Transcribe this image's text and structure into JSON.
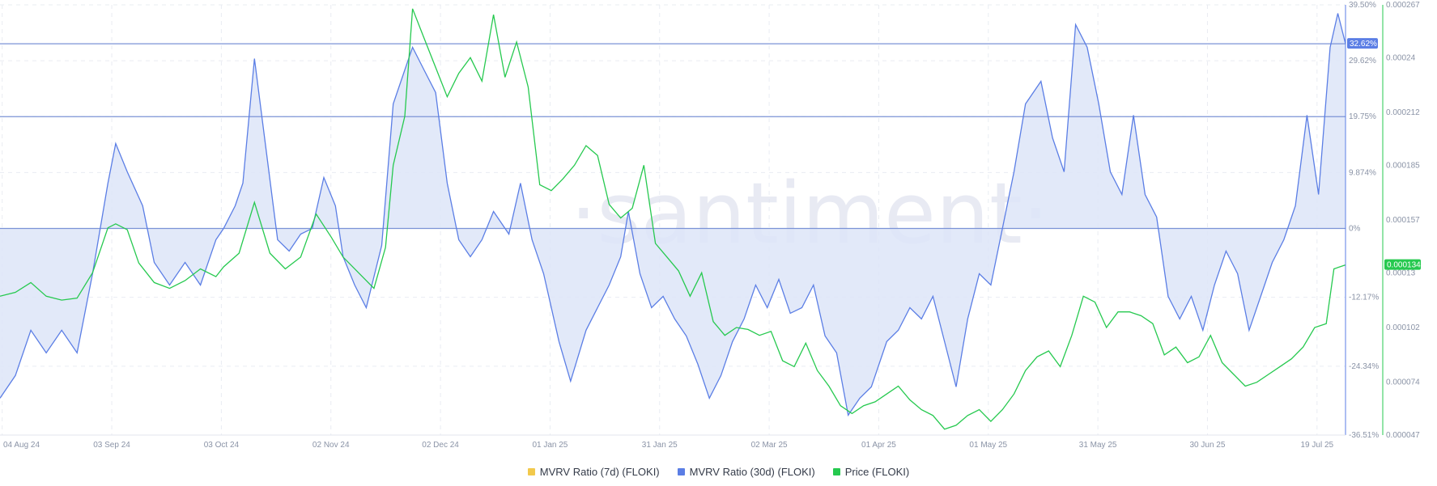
{
  "watermark": "·santiment·",
  "legend": [
    {
      "label": "MVRV Ratio (7d) (FLOKI)",
      "color": "#f2c94c"
    },
    {
      "label": "MVRV Ratio (30d) (FLOKI)",
      "color": "#5b7ee5"
    },
    {
      "label": "Price (FLOKI)",
      "color": "#26c94f"
    }
  ],
  "chart_data": {
    "type": "line",
    "x_ticks": [
      "04 Aug 24",
      "03 Sep 24",
      "03 Oct 24",
      "02 Nov 24",
      "02 Dec 24",
      "01 Jan 25",
      "31 Jan 25",
      "02 Mar 25",
      "01 Apr 25",
      "01 May 25",
      "31 May 25",
      "30 Jun 25",
      "19 Jul 25"
    ],
    "x_range": [
      "2024-08-04",
      "2025-07-19"
    ],
    "mvrv_axis": {
      "ticks": [
        "39.50%",
        "29.62%",
        "19.75%",
        "9.874%",
        "0%",
        "-12.17%",
        "-24.34%",
        "-36.51%"
      ],
      "range": [
        -36.51,
        39.5
      ],
      "unit": "%"
    },
    "price_axis": {
      "ticks": [
        "0.000267",
        "0.00024",
        "0.000212",
        "0.000185",
        "0.000157",
        "0.00013",
        "0.000102",
        "0.000074",
        "0.000047"
      ],
      "range": [
        4.7e-05,
        0.000267
      ]
    },
    "reference_lines": [
      32.62,
      19.75,
      0
    ],
    "current_labels": {
      "mvrv": "32.62%",
      "price": "0.000134"
    },
    "series": [
      {
        "name": "MVRV Ratio (30d) (FLOKI)",
        "color": "#5b7ee5",
        "axis": "mvrv",
        "fill": "#dde5f8",
        "points": [
          [
            "2024-08-04",
            -30
          ],
          [
            "2024-08-08",
            -26
          ],
          [
            "2024-08-12",
            -18
          ],
          [
            "2024-08-16",
            -22
          ],
          [
            "2024-08-20",
            -18
          ],
          [
            "2024-08-24",
            -22
          ],
          [
            "2024-08-28",
            -8
          ],
          [
            "2024-09-01",
            8
          ],
          [
            "2024-09-03",
            15
          ],
          [
            "2024-09-06",
            10
          ],
          [
            "2024-09-10",
            4
          ],
          [
            "2024-09-13",
            -6
          ],
          [
            "2024-09-17",
            -10
          ],
          [
            "2024-09-21",
            -6
          ],
          [
            "2024-09-25",
            -10
          ],
          [
            "2024-09-29",
            -2
          ],
          [
            "2024-10-01",
            0
          ],
          [
            "2024-10-04",
            4
          ],
          [
            "2024-10-06",
            8
          ],
          [
            "2024-10-09",
            30
          ],
          [
            "2024-10-12",
            14
          ],
          [
            "2024-10-15",
            -2
          ],
          [
            "2024-10-18",
            -4
          ],
          [
            "2024-10-21",
            -1
          ],
          [
            "2024-10-24",
            0
          ],
          [
            "2024-10-27",
            9
          ],
          [
            "2024-10-30",
            4
          ],
          [
            "2024-11-01",
            -5
          ],
          [
            "2024-11-04",
            -10
          ],
          [
            "2024-11-07",
            -14
          ],
          [
            "2024-11-11",
            -3
          ],
          [
            "2024-11-14",
            22
          ],
          [
            "2024-11-17",
            28
          ],
          [
            "2024-11-19",
            32
          ],
          [
            "2024-11-22",
            28
          ],
          [
            "2024-11-25",
            24
          ],
          [
            "2024-11-28",
            8
          ],
          [
            "2024-12-01",
            -2
          ],
          [
            "2024-12-04",
            -5
          ],
          [
            "2024-12-07",
            -2
          ],
          [
            "2024-12-10",
            3
          ],
          [
            "2024-12-14",
            -1
          ],
          [
            "2024-12-17",
            8
          ],
          [
            "2024-12-20",
            -2
          ],
          [
            "2024-12-23",
            -8
          ],
          [
            "2024-12-27",
            -20
          ],
          [
            "2024-12-30",
            -27
          ],
          [
            "2025-01-03",
            -18
          ],
          [
            "2025-01-06",
            -14
          ],
          [
            "2025-01-09",
            -10
          ],
          [
            "2025-01-12",
            -5
          ],
          [
            "2025-01-14",
            3
          ],
          [
            "2025-01-17",
            -8
          ],
          [
            "2025-01-20",
            -14
          ],
          [
            "2025-01-23",
            -12
          ],
          [
            "2025-01-26",
            -16
          ],
          [
            "2025-01-29",
            -19
          ],
          [
            "2025-02-01",
            -24
          ],
          [
            "2025-02-04",
            -30
          ],
          [
            "2025-02-07",
            -26
          ],
          [
            "2025-02-10",
            -20
          ],
          [
            "2025-02-13",
            -16
          ],
          [
            "2025-02-16",
            -10
          ],
          [
            "2025-02-19",
            -14
          ],
          [
            "2025-02-22",
            -9
          ],
          [
            "2025-02-25",
            -15
          ],
          [
            "2025-02-28",
            -14
          ],
          [
            "2025-03-03",
            -10
          ],
          [
            "2025-03-06",
            -19
          ],
          [
            "2025-03-09",
            -22
          ],
          [
            "2025-03-12",
            -33
          ],
          [
            "2025-03-15",
            -30
          ],
          [
            "2025-03-18",
            -28
          ],
          [
            "2025-03-22",
            -20
          ],
          [
            "2025-03-25",
            -18
          ],
          [
            "2025-03-28",
            -14
          ],
          [
            "2025-03-31",
            -16
          ],
          [
            "2025-04-03",
            -12
          ],
          [
            "2025-04-06",
            -20
          ],
          [
            "2025-04-09",
            -28
          ],
          [
            "2025-04-12",
            -16
          ],
          [
            "2025-04-15",
            -8
          ],
          [
            "2025-04-18",
            -10
          ],
          [
            "2025-04-21",
            0
          ],
          [
            "2025-04-24",
            10
          ],
          [
            "2025-04-27",
            22
          ],
          [
            "2025-05-01",
            26
          ],
          [
            "2025-05-04",
            16
          ],
          [
            "2025-05-07",
            10
          ],
          [
            "2025-05-10",
            36
          ],
          [
            "2025-05-13",
            32
          ],
          [
            "2025-05-16",
            22
          ],
          [
            "2025-05-19",
            10
          ],
          [
            "2025-05-22",
            6
          ],
          [
            "2025-05-25",
            20
          ],
          [
            "2025-05-28",
            6
          ],
          [
            "2025-05-31",
            2
          ],
          [
            "2025-06-03",
            -12
          ],
          [
            "2025-06-06",
            -16
          ],
          [
            "2025-06-09",
            -12
          ],
          [
            "2025-06-12",
            -18
          ],
          [
            "2025-06-15",
            -10
          ],
          [
            "2025-06-18",
            -4
          ],
          [
            "2025-06-21",
            -8
          ],
          [
            "2025-06-24",
            -18
          ],
          [
            "2025-06-27",
            -12
          ],
          [
            "2025-06-30",
            -6
          ],
          [
            "2025-07-03",
            -2
          ],
          [
            "2025-07-06",
            4
          ],
          [
            "2025-07-09",
            20
          ],
          [
            "2025-07-12",
            6
          ],
          [
            "2025-07-15",
            32
          ],
          [
            "2025-07-17",
            38
          ],
          [
            "2025-07-19",
            32.62
          ]
        ]
      },
      {
        "name": "Price (FLOKI)",
        "color": "#26c94f",
        "axis": "price",
        "points": [
          [
            "2024-08-04",
            0.000118
          ],
          [
            "2024-08-08",
            0.00012
          ],
          [
            "2024-08-12",
            0.000125
          ],
          [
            "2024-08-16",
            0.000118
          ],
          [
            "2024-08-20",
            0.000116
          ],
          [
            "2024-08-24",
            0.000117
          ],
          [
            "2024-08-28",
            0.00013
          ],
          [
            "2024-09-01",
            0.000153
          ],
          [
            "2024-09-03",
            0.000155
          ],
          [
            "2024-09-06",
            0.000152
          ],
          [
            "2024-09-09",
            0.000135
          ],
          [
            "2024-09-13",
            0.000125
          ],
          [
            "2024-09-17",
            0.000122
          ],
          [
            "2024-09-21",
            0.000126
          ],
          [
            "2024-09-25",
            0.000132
          ],
          [
            "2024-09-29",
            0.000128
          ],
          [
            "2024-10-01",
            0.000133
          ],
          [
            "2024-10-05",
            0.00014
          ],
          [
            "2024-10-09",
            0.000166
          ],
          [
            "2024-10-13",
            0.00014
          ],
          [
            "2024-10-17",
            0.000132
          ],
          [
            "2024-10-21",
            0.000138
          ],
          [
            "2024-10-25",
            0.00016
          ],
          [
            "2024-10-29",
            0.000148
          ],
          [
            "2024-11-01",
            0.000138
          ],
          [
            "2024-11-05",
            0.00013
          ],
          [
            "2024-11-09",
            0.000122
          ],
          [
            "2024-11-12",
            0.000143
          ],
          [
            "2024-11-14",
            0.000185
          ],
          [
            "2024-11-17",
            0.00021
          ],
          [
            "2024-11-19",
            0.000265
          ],
          [
            "2024-11-22",
            0.00025
          ],
          [
            "2024-11-25",
            0.000235
          ],
          [
            "2024-11-28",
            0.00022
          ],
          [
            "2024-12-01",
            0.000232
          ],
          [
            "2024-12-04",
            0.00024
          ],
          [
            "2024-12-07",
            0.000228
          ],
          [
            "2024-12-10",
            0.000262
          ],
          [
            "2024-12-13",
            0.00023
          ],
          [
            "2024-12-16",
            0.000248
          ],
          [
            "2024-12-19",
            0.000225
          ],
          [
            "2024-12-22",
            0.000175
          ],
          [
            "2024-12-25",
            0.000172
          ],
          [
            "2024-12-28",
            0.000178
          ],
          [
            "2024-12-31",
            0.000185
          ],
          [
            "2025-01-03",
            0.000195
          ],
          [
            "2025-01-06",
            0.00019
          ],
          [
            "2025-01-09",
            0.000165
          ],
          [
            "2025-01-12",
            0.000158
          ],
          [
            "2025-01-15",
            0.000163
          ],
          [
            "2025-01-18",
            0.000185
          ],
          [
            "2025-01-21",
            0.000145
          ],
          [
            "2025-01-24",
            0.000138
          ],
          [
            "2025-01-27",
            0.000131
          ],
          [
            "2025-01-30",
            0.000118
          ],
          [
            "2025-02-02",
            0.00013
          ],
          [
            "2025-02-05",
            0.000105
          ],
          [
            "2025-02-08",
            9.8e-05
          ],
          [
            "2025-02-11",
            0.000102
          ],
          [
            "2025-02-14",
            0.000101
          ],
          [
            "2025-02-17",
            9.8e-05
          ],
          [
            "2025-02-20",
            0.0001
          ],
          [
            "2025-02-23",
            8.5e-05
          ],
          [
            "2025-02-26",
            8.2e-05
          ],
          [
            "2025-03-01",
            9.4e-05
          ],
          [
            "2025-03-04",
            8e-05
          ],
          [
            "2025-03-07",
            7.2e-05
          ],
          [
            "2025-03-10",
            6.2e-05
          ],
          [
            "2025-03-13",
            5.8e-05
          ],
          [
            "2025-03-16",
            6.2e-05
          ],
          [
            "2025-03-19",
            6.4e-05
          ],
          [
            "2025-03-22",
            6.8e-05
          ],
          [
            "2025-03-25",
            7.2e-05
          ],
          [
            "2025-03-28",
            6.5e-05
          ],
          [
            "2025-03-31",
            6e-05
          ],
          [
            "2025-04-03",
            5.7e-05
          ],
          [
            "2025-04-06",
            5e-05
          ],
          [
            "2025-04-09",
            5.2e-05
          ],
          [
            "2025-04-12",
            5.7e-05
          ],
          [
            "2025-04-15",
            6e-05
          ],
          [
            "2025-04-18",
            5.4e-05
          ],
          [
            "2025-04-21",
            6e-05
          ],
          [
            "2025-04-24",
            6.8e-05
          ],
          [
            "2025-04-27",
            8e-05
          ],
          [
            "2025-04-30",
            8.7e-05
          ],
          [
            "2025-05-03",
            9e-05
          ],
          [
            "2025-05-06",
            8.2e-05
          ],
          [
            "2025-05-09",
            9.8e-05
          ],
          [
            "2025-05-12",
            0.000118
          ],
          [
            "2025-05-15",
            0.000115
          ],
          [
            "2025-05-18",
            0.000102
          ],
          [
            "2025-05-21",
            0.00011
          ],
          [
            "2025-05-24",
            0.00011
          ],
          [
            "2025-05-27",
            0.000108
          ],
          [
            "2025-05-30",
            0.000104
          ],
          [
            "2025-06-02",
            8.8e-05
          ],
          [
            "2025-06-05",
            9.2e-05
          ],
          [
            "2025-06-08",
            8.4e-05
          ],
          [
            "2025-06-11",
            8.7e-05
          ],
          [
            "2025-06-14",
            9.8e-05
          ],
          [
            "2025-06-17",
            8.4e-05
          ],
          [
            "2025-06-20",
            7.8e-05
          ],
          [
            "2025-06-23",
            7.2e-05
          ],
          [
            "2025-06-26",
            7.4e-05
          ],
          [
            "2025-06-29",
            7.8e-05
          ],
          [
            "2025-07-02",
            8.2e-05
          ],
          [
            "2025-07-05",
            8.6e-05
          ],
          [
            "2025-07-08",
            9.2e-05
          ],
          [
            "2025-07-11",
            0.000102
          ],
          [
            "2025-07-14",
            0.000104
          ],
          [
            "2025-07-16",
            0.000132
          ],
          [
            "2025-07-19",
            0.000134
          ]
        ]
      }
    ]
  }
}
